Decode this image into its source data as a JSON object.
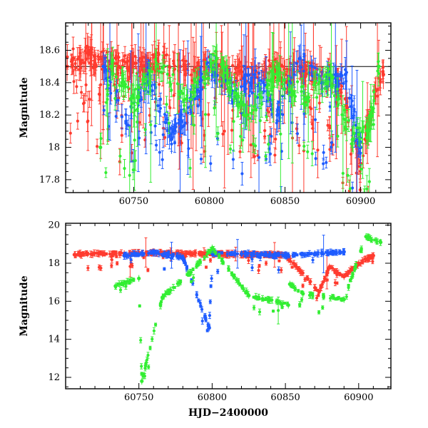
{
  "chart_data": [
    {
      "type": "scatter",
      "panel": "top",
      "title": "",
      "xlabel": "",
      "ylabel": "Magnitude",
      "xlim": [
        60705,
        60920
      ],
      "ylim": [
        18.77,
        17.72
      ],
      "y_inverted": true,
      "xticks": [
        60750,
        60800,
        60850,
        60900
      ],
      "yticks": [
        17.8,
        18,
        18.2,
        18.4,
        18.6
      ],
      "grid": false,
      "legend": "none",
      "baseline": 18.5,
      "colors": {
        "red": "#ff3b2f",
        "blue": "#1f5cff",
        "green": "#33ee33"
      },
      "series": [
        {
          "color_key": "red",
          "x": [
            60706,
            60710,
            60715,
            60720,
            60725,
            60730,
            60740,
            60750,
            60760,
            60770,
            60780,
            60790,
            60800,
            60810,
            60820,
            60830,
            60840,
            60850,
            60860,
            60870,
            60880,
            60890,
            60895,
            60898,
            60900,
            60903,
            60906,
            60910,
            60915
          ],
          "y": [
            18.5,
            18.55,
            18.52,
            18.6,
            18.5,
            18.55,
            18.5,
            18.52,
            18.5,
            18.55,
            18.5,
            18.48,
            18.5,
            18.45,
            18.47,
            18.45,
            18.5,
            18.45,
            18.5,
            18.45,
            18.45,
            18.3,
            18.05,
            17.95,
            17.9,
            18.05,
            18.2,
            18.35,
            18.45
          ]
        },
        {
          "color_key": "blue",
          "x": [
            60730,
            60745,
            60760,
            60775,
            60790,
            60800,
            60815,
            60830,
            60845,
            60860,
            60875,
            60890,
            60900
          ],
          "y": [
            18.5,
            18.15,
            18.45,
            18.05,
            18.3,
            18.5,
            18.35,
            18.45,
            18.2,
            18.55,
            18.4,
            18.45,
            18.0
          ]
        },
        {
          "color_key": "green",
          "x": [
            60728,
            60735,
            60748,
            60765,
            60785,
            60805,
            60825,
            60845,
            60865,
            60880,
            60895,
            60905,
            60912
          ],
          "y": [
            18.0,
            18.5,
            18.3,
            18.5,
            18.3,
            18.55,
            18.2,
            18.45,
            18.3,
            18.45,
            18.05,
            18.1,
            18.5
          ]
        }
      ]
    },
    {
      "type": "scatter",
      "panel": "bottom",
      "title": "",
      "xlabel": "HJD−2400000",
      "ylabel": "Magnitude",
      "xlim": [
        60700,
        60922
      ],
      "ylim": [
        20.1,
        11.4
      ],
      "y_inverted": true,
      "xticks": [
        60750,
        60800,
        60850,
        60900
      ],
      "yticks": [
        12,
        14,
        16,
        18,
        20
      ],
      "grid": false,
      "legend": "none",
      "colors": {
        "red": "#ff3b2f",
        "blue": "#1f5cff",
        "green": "#33ee33"
      },
      "series": [
        {
          "color_key": "red",
          "x": [
            60706,
            60715,
            60725,
            60740,
            60760,
            60780,
            60800,
            60820,
            60850,
            60873,
            60880,
            60890,
            60900,
            60910
          ],
          "y": [
            18.45,
            18.5,
            18.5,
            18.5,
            18.55,
            18.5,
            18.5,
            18.45,
            18.45,
            16.5,
            17.8,
            17.3,
            18.0,
            18.4
          ]
        },
        {
          "color_key": "blue",
          "x": [
            60740,
            60760,
            60780,
            60798,
            60800,
            60820,
            60850,
            60870,
            60890
          ],
          "y": [
            18.4,
            18.6,
            18.3,
            14.6,
            18.5,
            18.5,
            18.4,
            18.5,
            18.6
          ]
        },
        {
          "color_key": "green",
          "x": [
            60734,
            60750,
            60752,
            60766,
            60785,
            60800,
            60825,
            60852,
            60853,
            60862,
            60890,
            60905,
            60915
          ],
          "y": [
            16.8,
            17.2,
            11.8,
            16.2,
            17.5,
            18.8,
            16.3,
            15.8,
            16.9,
            16.4,
            16.1,
            19.4,
            19.1
          ]
        }
      ]
    }
  ]
}
